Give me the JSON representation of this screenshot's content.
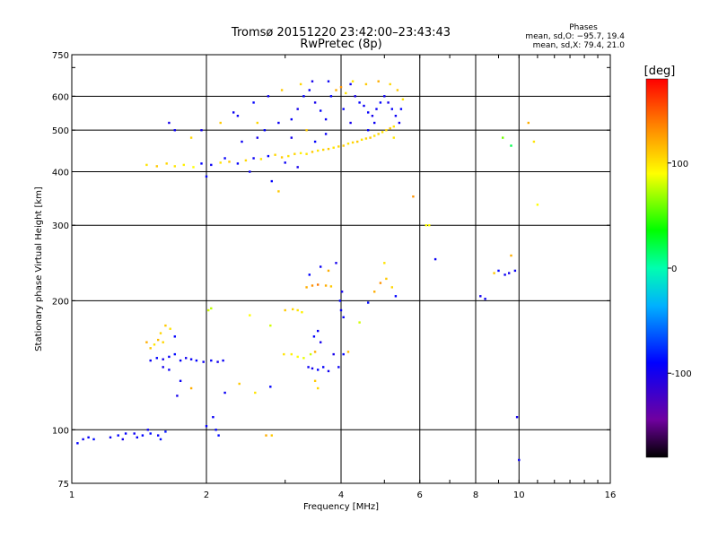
{
  "chart_data": {
    "type": "scatter",
    "title": "Tromsø 20151220 23:42:00–23:43:43",
    "subtitle": "RwPretec (8p)",
    "xlabel": "Frequency [MHz]",
    "ylabel": "Stationary phase Virtual Height [km]",
    "x_scale": "log",
    "y_scale": "log",
    "xlim": [
      1,
      16
    ],
    "ylim": [
      75,
      750
    ],
    "x_ticks": [
      1,
      2,
      4,
      6,
      8,
      10,
      16
    ],
    "x_ticklabels": [
      "1",
      "2",
      "4",
      "6",
      "8",
      "10",
      "16"
    ],
    "y_ticks": [
      75,
      100,
      200,
      300,
      400,
      500,
      600,
      750
    ],
    "y_ticklabels": [
      "75",
      "100",
      "200",
      "300",
      "400",
      "500",
      "600",
      "750"
    ],
    "grid": true,
    "stats": {
      "heading": "Phases",
      "line_o": "mean, sd,O: −95.7, 19.4",
      "line_x": "mean, sd,X:  79.4, 21.0"
    },
    "colorbar": {
      "label": "[deg]",
      "range": [
        -180,
        180
      ],
      "ticks": [
        100,
        0,
        -100
      ],
      "ticklabels": [
        "100",
        "0",
        "-100"
      ]
    },
    "series": [
      {
        "values": [
          [
            1.03,
            93,
            -90
          ],
          [
            1.06,
            95,
            -95
          ],
          [
            1.09,
            96,
            -92
          ],
          [
            1.12,
            95,
            -88
          ],
          [
            1.22,
            96,
            -95
          ],
          [
            1.27,
            97,
            -90
          ],
          [
            1.32,
            98,
            -92
          ],
          [
            1.38,
            98,
            -96
          ],
          [
            1.44,
            97,
            -90
          ],
          [
            1.5,
            98,
            -88
          ],
          [
            1.56,
            97,
            -94
          ],
          [
            1.62,
            99,
            -85
          ],
          [
            1.3,
            95,
            -100
          ],
          [
            1.4,
            96,
            -92
          ],
          [
            1.58,
            95,
            -86
          ],
          [
            1.48,
            100,
            -95
          ],
          [
            1.47,
            160,
            120
          ],
          [
            1.5,
            155,
            110
          ],
          [
            1.53,
            158,
            100
          ],
          [
            1.56,
            162,
            115
          ],
          [
            1.6,
            160,
            105
          ],
          [
            1.5,
            145,
            -95
          ],
          [
            1.55,
            147,
            -90
          ],
          [
            1.6,
            146,
            -100
          ],
          [
            1.65,
            148,
            -92
          ],
          [
            1.7,
            150,
            -88
          ],
          [
            1.6,
            140,
            -100
          ],
          [
            1.65,
            138,
            -95
          ],
          [
            1.75,
            145,
            -92
          ],
          [
            1.8,
            147,
            -98
          ],
          [
            1.85,
            146,
            -94
          ],
          [
            1.9,
            145,
            -90
          ],
          [
            1.97,
            144,
            -96
          ],
          [
            2.05,
            145,
            -92
          ],
          [
            2.12,
            144,
            -100
          ],
          [
            2.18,
            145,
            -95
          ],
          [
            1.62,
            175,
            110
          ],
          [
            1.58,
            168,
            105
          ],
          [
            1.7,
            165,
            -90
          ],
          [
            1.66,
            172,
            100
          ],
          [
            1.75,
            130,
            -95
          ],
          [
            1.72,
            120,
            -100
          ],
          [
            1.85,
            125,
            120
          ],
          [
            2.02,
            190,
            80
          ],
          [
            2.05,
            192,
            75
          ],
          [
            2.07,
            107,
            -95
          ],
          [
            2.1,
            100,
            -90
          ],
          [
            2.0,
            102,
            -92
          ],
          [
            2.13,
            97,
            -88
          ],
          [
            2.2,
            122,
            -95
          ],
          [
            2.37,
            128,
            110
          ],
          [
            2.57,
            122,
            100
          ],
          [
            2.78,
            126,
            -90
          ],
          [
            2.72,
            97,
            120
          ],
          [
            2.8,
            97,
            110
          ],
          [
            2.5,
            185,
            90
          ],
          [
            2.78,
            175,
            80
          ],
          [
            3.0,
            190,
            110
          ],
          [
            3.12,
            191,
            105
          ],
          [
            3.2,
            190,
            100
          ],
          [
            3.27,
            188,
            95
          ],
          [
            2.98,
            150,
            100
          ],
          [
            3.1,
            150,
            95
          ],
          [
            3.2,
            148,
            90
          ],
          [
            3.3,
            147,
            85
          ],
          [
            3.42,
            150,
            80
          ],
          [
            3.5,
            152,
            120
          ],
          [
            3.38,
            140,
            -95
          ],
          [
            3.45,
            139,
            -100
          ],
          [
            3.55,
            138,
            -90
          ],
          [
            3.65,
            140,
            -92
          ],
          [
            3.75,
            137,
            -98
          ],
          [
            3.5,
            130,
            110
          ],
          [
            3.55,
            125,
            105
          ],
          [
            3.85,
            150,
            -100
          ],
          [
            3.95,
            140,
            -95
          ],
          [
            4.05,
            150,
            -90
          ],
          [
            4.15,
            152,
            115
          ],
          [
            3.48,
            165,
            -90
          ],
          [
            3.55,
            170,
            -95
          ],
          [
            3.6,
            160,
            -100
          ],
          [
            3.35,
            215,
            120
          ],
          [
            3.45,
            217,
            130
          ],
          [
            3.55,
            218,
            140
          ],
          [
            3.7,
            217,
            120
          ],
          [
            3.8,
            216,
            110
          ],
          [
            3.6,
            240,
            -95
          ],
          [
            3.75,
            235,
            120
          ],
          [
            3.9,
            245,
            -100
          ],
          [
            3.4,
            230,
            -90
          ],
          [
            3.98,
            200,
            -90
          ],
          [
            4.02,
            210,
            -100
          ],
          [
            4.0,
            190,
            -95
          ],
          [
            4.05,
            183,
            -92
          ],
          [
            4.6,
            198,
            -88
          ],
          [
            4.75,
            210,
            120
          ],
          [
            4.9,
            220,
            130
          ],
          [
            5.05,
            225,
            110
          ],
          [
            5.2,
            215,
            105
          ],
          [
            5.0,
            245,
            100
          ],
          [
            4.4,
            178,
            80
          ],
          [
            5.3,
            205,
            -90
          ],
          [
            6.5,
            250,
            -95
          ],
          [
            6.3,
            300,
            90
          ],
          [
            8.2,
            205,
            -100
          ],
          [
            8.4,
            202,
            -95
          ],
          [
            8.8,
            232,
            110
          ],
          [
            9.0,
            235,
            -90
          ],
          [
            9.3,
            230,
            -95
          ],
          [
            9.5,
            232,
            -100
          ],
          [
            9.6,
            255,
            120
          ],
          [
            9.8,
            235,
            -95
          ],
          [
            9.9,
            107,
            -100
          ],
          [
            10.0,
            85,
            -95
          ],
          [
            1.47,
            415,
            100
          ],
          [
            1.55,
            412,
            110
          ],
          [
            1.63,
            418,
            105
          ],
          [
            1.7,
            412,
            100
          ],
          [
            1.78,
            415,
            95
          ],
          [
            1.87,
            410,
            90
          ],
          [
            1.95,
            418,
            -90
          ],
          [
            2.05,
            415,
            -95
          ],
          [
            2.15,
            420,
            100
          ],
          [
            2.25,
            422,
            110
          ],
          [
            2.35,
            418,
            -92
          ],
          [
            2.45,
            425,
            105
          ],
          [
            2.55,
            430,
            -95
          ],
          [
            2.65,
            428,
            100
          ],
          [
            2.75,
            435,
            -90
          ],
          [
            2.85,
            438,
            105
          ],
          [
            2.95,
            432,
            110
          ],
          [
            3.05,
            435,
            100
          ],
          [
            3.15,
            440,
            105
          ],
          [
            3.25,
            442,
            95
          ],
          [
            3.35,
            440,
            100
          ],
          [
            3.45,
            445,
            110
          ],
          [
            3.55,
            448,
            100
          ],
          [
            3.65,
            450,
            105
          ],
          [
            3.75,
            452,
            110
          ],
          [
            3.85,
            455,
            100
          ],
          [
            3.95,
            458,
            105
          ],
          [
            4.05,
            460,
            110
          ],
          [
            4.15,
            465,
            100
          ],
          [
            4.25,
            468,
            105
          ],
          [
            4.35,
            470,
            110
          ],
          [
            4.45,
            475,
            100
          ],
          [
            4.55,
            478,
            105
          ],
          [
            4.65,
            480,
            110
          ],
          [
            4.75,
            485,
            100
          ],
          [
            4.85,
            490,
            105
          ],
          [
            4.95,
            495,
            100
          ],
          [
            5.05,
            500,
            105
          ],
          [
            5.15,
            505,
            110
          ],
          [
            5.25,
            510,
            100
          ],
          [
            1.65,
            520,
            -100
          ],
          [
            1.7,
            500,
            -95
          ],
          [
            2.0,
            390,
            -90
          ],
          [
            2.2,
            430,
            -92
          ],
          [
            2.4,
            470,
            -95
          ],
          [
            2.6,
            480,
            -100
          ],
          [
            2.7,
            500,
            -90
          ],
          [
            2.9,
            520,
            -95
          ],
          [
            3.1,
            530,
            -92
          ],
          [
            3.2,
            560,
            -100
          ],
          [
            3.3,
            600,
            -90
          ],
          [
            3.4,
            620,
            -95
          ],
          [
            3.5,
            580,
            -100
          ],
          [
            3.6,
            555,
            -92
          ],
          [
            3.7,
            530,
            -95
          ],
          [
            3.8,
            600,
            -90
          ],
          [
            3.9,
            620,
            120
          ],
          [
            4.0,
            630,
            130
          ],
          [
            4.1,
            610,
            100
          ],
          [
            4.2,
            640,
            -95
          ],
          [
            4.3,
            600,
            -100
          ],
          [
            4.4,
            580,
            -90
          ],
          [
            4.5,
            570,
            -95
          ],
          [
            4.6,
            550,
            -92
          ],
          [
            4.7,
            540,
            -100
          ],
          [
            4.8,
            560,
            -95
          ],
          [
            4.9,
            580,
            -90
          ],
          [
            5.0,
            600,
            -95
          ],
          [
            5.1,
            580,
            -100
          ],
          [
            5.2,
            560,
            -92
          ],
          [
            5.3,
            540,
            -95
          ],
          [
            5.4,
            520,
            -100
          ],
          [
            5.45,
            560,
            -90
          ],
          [
            5.5,
            590,
            100
          ],
          [
            5.35,
            620,
            110
          ],
          [
            5.15,
            640,
            105
          ],
          [
            4.85,
            650,
            120
          ],
          [
            4.55,
            640,
            110
          ],
          [
            4.25,
            650,
            100
          ],
          [
            3.75,
            650,
            -95
          ],
          [
            3.45,
            650,
            -100
          ],
          [
            3.25,
            640,
            105
          ],
          [
            2.95,
            620,
            110
          ],
          [
            2.75,
            600,
            -95
          ],
          [
            2.55,
            580,
            -90
          ],
          [
            2.3,
            550,
            -95
          ],
          [
            2.15,
            520,
            110
          ],
          [
            1.95,
            500,
            -100
          ],
          [
            1.85,
            480,
            105
          ],
          [
            3.0,
            420,
            -95
          ],
          [
            3.2,
            410,
            -100
          ],
          [
            2.8,
            380,
            -90
          ],
          [
            2.9,
            360,
            110
          ],
          [
            2.5,
            400,
            -95
          ],
          [
            3.5,
            470,
            -90
          ],
          [
            3.7,
            490,
            -95
          ],
          [
            4.2,
            520,
            -100
          ],
          [
            4.6,
            500,
            -92
          ],
          [
            2.35,
            540,
            -95
          ],
          [
            2.6,
            520,
            105
          ],
          [
            3.1,
            480,
            -100
          ],
          [
            3.35,
            500,
            110
          ],
          [
            4.05,
            560,
            -90
          ],
          [
            4.75,
            520,
            -95
          ],
          [
            5.25,
            480,
            100
          ],
          [
            10.5,
            520,
            120
          ],
          [
            10.8,
            470,
            100
          ],
          [
            11.0,
            335,
            90
          ],
          [
            9.2,
            480,
            60
          ],
          [
            9.6,
            460,
            20
          ],
          [
            5.8,
            350,
            130
          ],
          [
            6.2,
            300,
            90
          ]
        ]
      }
    ]
  }
}
